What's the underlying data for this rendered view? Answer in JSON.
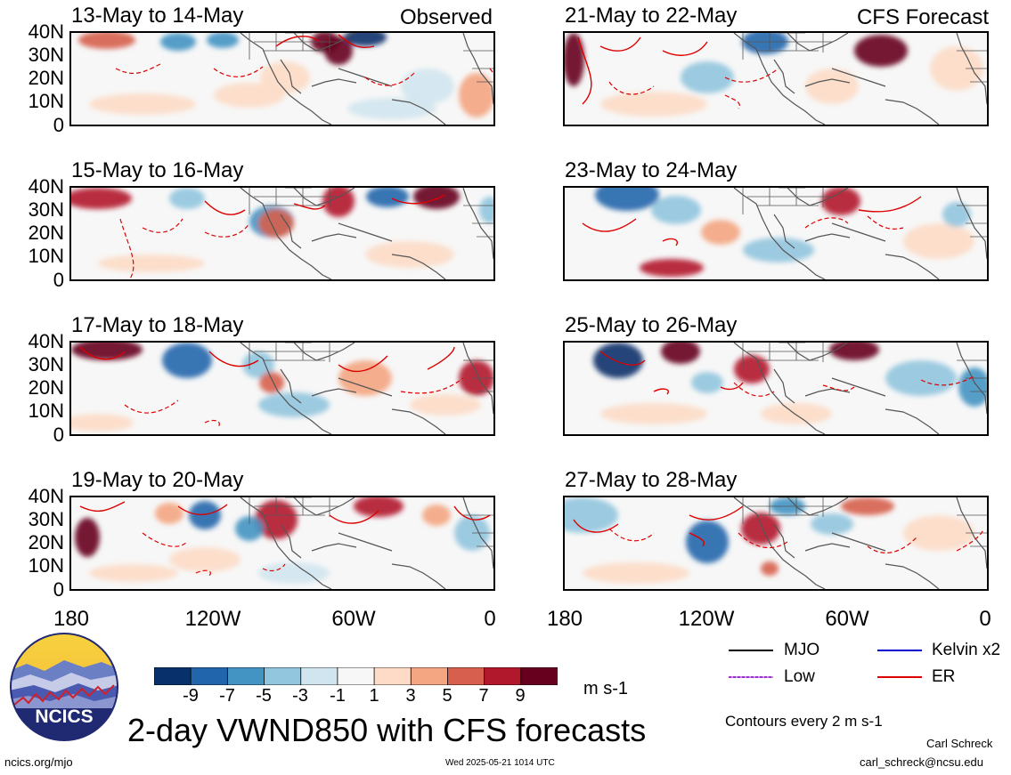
{
  "header": {
    "left_tag": "Observed",
    "right_tag": "CFS Forecast"
  },
  "panels": [
    {
      "title": "13-May to 14-May",
      "kind": "observed"
    },
    {
      "title": "15-May to 16-May",
      "kind": "observed"
    },
    {
      "title": "17-May to 18-May",
      "kind": "observed"
    },
    {
      "title": "19-May to 20-May",
      "kind": "observed"
    },
    {
      "title": "21-May to 22-May",
      "kind": "forecast"
    },
    {
      "title": "23-May to 24-May",
      "kind": "forecast"
    },
    {
      "title": "25-May to 26-May",
      "kind": "forecast"
    },
    {
      "title": "27-May to 28-May",
      "kind": "forecast"
    }
  ],
  "lat_labels": [
    "40N",
    "30N",
    "20N",
    "10N",
    "0"
  ],
  "lon_labels": [
    "180",
    "120W",
    "60W",
    "0"
  ],
  "colorbar": {
    "labels": [
      "-9",
      "-7",
      "-5",
      "-3",
      "-1",
      "1",
      "3",
      "5",
      "7",
      "9"
    ],
    "units": "m s-1",
    "colors": [
      "#08306b",
      "#2166ac",
      "#4393c3",
      "#92c5de",
      "#d1e5f0",
      "#f7f7f7",
      "#fddbc7",
      "#f4a582",
      "#d6604d",
      "#b2182b",
      "#67001f"
    ]
  },
  "legend": {
    "items": [
      {
        "label": "MJO",
        "color": "#000000"
      },
      {
        "label": "Kelvin x2",
        "color": "#0000cc"
      },
      {
        "label": "Low",
        "color": "#9932cc"
      },
      {
        "label": "ER",
        "color": "#dd0000"
      }
    ],
    "contour_note": "Contours every 2 m s-1"
  },
  "logo": {
    "text": "NCICS"
  },
  "main_title": "2-day VWND850 with CFS forecasts",
  "footer": {
    "url": "ncics.org/mjo",
    "timestamp": "Wed 2025-05-21 1014 UTC",
    "author": "Carl Schreck",
    "email": "carl_schreck@ncsu.edu"
  }
}
